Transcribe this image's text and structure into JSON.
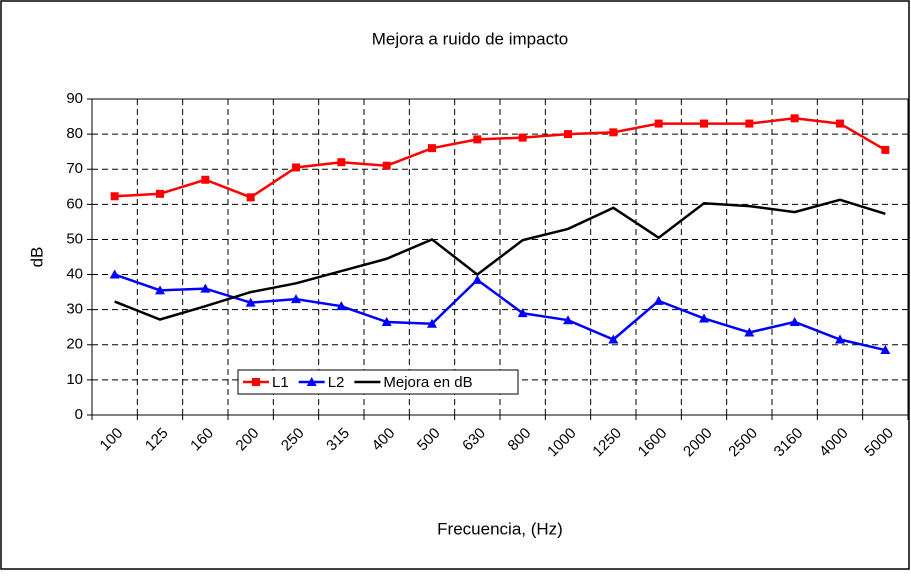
{
  "chart_data": {
    "type": "line",
    "title": "Mejora a ruido de impacto",
    "xlabel": "Frecuencia, (Hz)",
    "ylabel": "dB",
    "categories": [
      "100",
      "125",
      "160",
      "200",
      "250",
      "315",
      "400",
      "500",
      "630",
      "800",
      "1000",
      "1250",
      "1600",
      "2000",
      "2500",
      "3160",
      "4000",
      "5000"
    ],
    "series": [
      {
        "name": "L1",
        "color": "#ff0000",
        "marker": "square",
        "values": [
          62.3,
          63,
          67,
          62,
          70.5,
          72,
          71,
          76,
          78.5,
          79,
          80,
          80.5,
          83,
          83,
          83,
          84.5,
          83,
          75.5
        ]
      },
      {
        "name": "L2",
        "color": "#0000ff",
        "marker": "triangle",
        "values": [
          40,
          35.5,
          36,
          32,
          33,
          31,
          26.5,
          26,
          38.5,
          29,
          27,
          21.5,
          32.5,
          27.5,
          23.5,
          26.5,
          21.5,
          18.5
        ]
      },
      {
        "name": "Mejora en dB",
        "color": "#000000",
        "marker": "none",
        "values": [
          32.3,
          27.2,
          31,
          35,
          37.5,
          41,
          44.5,
          50,
          40,
          49.8,
          53,
          59,
          50.5,
          60.3,
          59.5,
          57.8,
          61.3,
          57.3
        ]
      }
    ],
    "ylim": [
      0,
      90
    ],
    "yticks": [
      0,
      10,
      20,
      30,
      40,
      50,
      60,
      70,
      80,
      90
    ],
    "grid": true,
    "legend": "lower left"
  }
}
